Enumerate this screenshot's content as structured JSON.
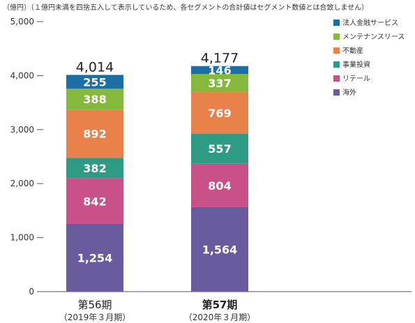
{
  "chart_data": {
    "type": "bar",
    "stacked": true,
    "note": "（億円）（１億円未満を四捨五入して表示しているため、各セグメントの合計値はセグメント数値とは合致しません）",
    "categories": [
      "第56期",
      "第57期"
    ],
    "category_sublabels": [
      "（2019年３月期）",
      "（2020年３月期）"
    ],
    "bold_category_index": 1,
    "ylim": [
      0,
      5000
    ],
    "yticks": [
      0,
      1000,
      2000,
      3000,
      4000,
      5000
    ],
    "ytick_labels": [
      "0",
      "1,000",
      "2,000",
      "3,000",
      "4,000",
      "5,000"
    ],
    "totals": [
      4014,
      4177
    ],
    "total_labels": [
      "4,014",
      "4,177"
    ],
    "series": [
      {
        "name": "海外",
        "color": "#6a5a9e",
        "values": [
          1254,
          1564
        ],
        "labels": [
          "1,254",
          "1,564"
        ]
      },
      {
        "name": "リテール",
        "color": "#c95088",
        "values": [
          842,
          804
        ],
        "labels": [
          "842",
          "804"
        ]
      },
      {
        "name": "事業投資",
        "color": "#2e9c84",
        "values": [
          382,
          557
        ],
        "labels": [
          "382",
          "557"
        ]
      },
      {
        "name": "不動産",
        "color": "#e8814a",
        "values": [
          892,
          769
        ],
        "labels": [
          "892",
          "769"
        ]
      },
      {
        "name": "メンテナンスリース",
        "color": "#86b83e",
        "values": [
          388,
          337
        ],
        "labels": [
          "388",
          "337"
        ]
      },
      {
        "name": "法人金融サービス",
        "color": "#1a6fa8",
        "values": [
          255,
          146
        ],
        "labels": [
          "255",
          "146"
        ]
      }
    ],
    "legend_order": [
      "法人金融サービス",
      "メンテナンスリース",
      "不動産",
      "事業投資",
      "リテール",
      "海外"
    ],
    "legend_position": "top-right",
    "grid": false
  }
}
